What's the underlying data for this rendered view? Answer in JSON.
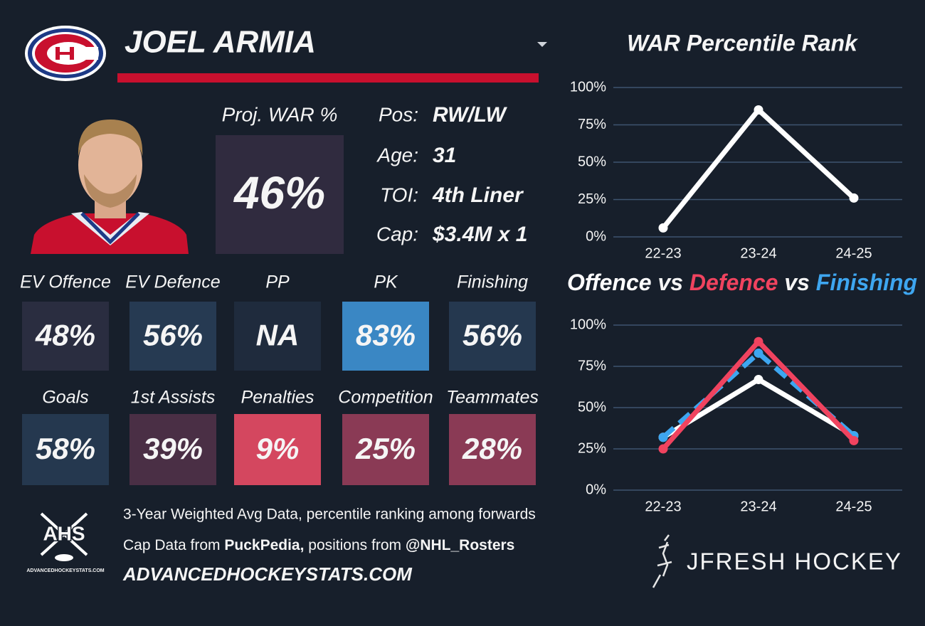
{
  "header": {
    "player": "JOEL ARMIA"
  },
  "proj": {
    "label": "Proj. WAR %",
    "value": "46%"
  },
  "info": [
    {
      "label": "Pos:",
      "value": "RW/LW"
    },
    {
      "label": "Age:",
      "value": "31"
    },
    {
      "label": "TOI:",
      "value": "4th Liner"
    },
    {
      "label": "Cap:",
      "value": "$3.4M x 1"
    }
  ],
  "tiles": [
    {
      "label": "EV Offence",
      "value": "48%",
      "color": "#2a2d40"
    },
    {
      "label": "EV Defence",
      "value": "56%",
      "color": "#263a52"
    },
    {
      "label": "PP",
      "value": "NA",
      "color": "#1f2b3d"
    },
    {
      "label": "PK",
      "value": "83%",
      "color": "#3a87c4"
    },
    {
      "label": "Finishing",
      "value": "56%",
      "color": "#25384f"
    },
    {
      "label": "Goals",
      "value": "58%",
      "color": "#25384f"
    },
    {
      "label": "1st Assists",
      "value": "39%",
      "color": "#4a2f45"
    },
    {
      "label": "Penalties",
      "value": "9%",
      "color": "#d4475f"
    },
    {
      "label": "Competition",
      "value": "25%",
      "color": "#8a3a55"
    },
    {
      "label": "Teammates",
      "value": "28%",
      "color": "#8a3a55"
    }
  ],
  "footer": {
    "line1": "3-Year Weighted Avg Data, percentile ranking among forwards",
    "line2a": "Cap Data from ",
    "line2b": "PuckPedia,",
    "line2c": " positions from ",
    "line2d": "@NHL_Rosters",
    "site": "ADVANCEDHOCKEYSTATS.COM"
  },
  "ahs_logo": {
    "mark": "AHS",
    "site": "ADVANCEDHOCKEYSTATS.COM"
  },
  "brand": "JFRESH HOCKEY",
  "chart_data": [
    {
      "type": "line",
      "title": "WAR Percentile Rank",
      "categories": [
        "22-23",
        "23-24",
        "24-25"
      ],
      "values": [
        6,
        85,
        26
      ],
      "color": "#ffffff",
      "ylim": [
        0,
        100
      ],
      "yticks": [
        {
          "value": 0,
          "label": "0%"
        },
        {
          "value": 25,
          "label": "25%"
        },
        {
          "value": 50,
          "label": "50%"
        },
        {
          "value": 75,
          "label": "75%"
        },
        {
          "value": 100,
          "label": "100%"
        }
      ],
      "grid": true
    },
    {
      "type": "line",
      "title_joiner": "vs",
      "categories": [
        "22-23",
        "23-24",
        "24-25"
      ],
      "series": [
        {
          "name": "Offence",
          "color": "#ffffff",
          "values": [
            32,
            67,
            33
          ]
        },
        {
          "name": "Defence",
          "color": "#f0435f",
          "values": [
            25,
            90,
            30
          ]
        },
        {
          "name": "Finishing",
          "color": "#3ea6f0",
          "values": [
            32,
            83,
            33
          ],
          "dash": true
        }
      ],
      "ylim": [
        0,
        100
      ],
      "yticks": [
        {
          "value": 0,
          "label": "0%"
        },
        {
          "value": 25,
          "label": "25%"
        },
        {
          "value": 50,
          "label": "50%"
        },
        {
          "value": 75,
          "label": "75%"
        },
        {
          "value": 100,
          "label": "100%"
        }
      ],
      "grid": true
    }
  ]
}
